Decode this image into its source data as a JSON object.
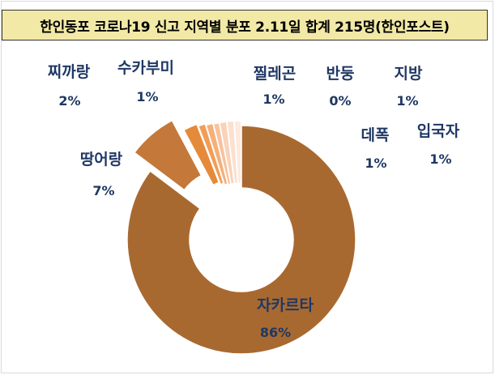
{
  "chart_data": {
    "type": "pie",
    "title": "한인동포 코로나19 신고 지역별 분포 2.11일 합계 215명(한인포스트)",
    "slices": [
      {
        "label": "자카르타",
        "value": 86,
        "value_label": "86%",
        "color": "#a86930",
        "exploded": false
      },
      {
        "label": "땅어랑",
        "value": 7,
        "value_label": "7%",
        "color": "#c4783a",
        "exploded": true
      },
      {
        "label": "찌까랑",
        "value": 2,
        "value_label": "2%",
        "color": "#e58a3a",
        "exploded": true
      },
      {
        "label": "수카부미",
        "value": 1,
        "value_label": "1%",
        "color": "#f29d55",
        "exploded": true
      },
      {
        "label": "찔레곤",
        "value": 1,
        "value_label": "1%",
        "color": "#f5b07a",
        "exploded": true
      },
      {
        "label": "반둥",
        "value": 0,
        "value_label": "0%",
        "color": "#f7c29d",
        "exploded": true
      },
      {
        "label": "지방",
        "value": 1,
        "value_label": "1%",
        "color": "#f9d2b8",
        "exploded": true
      },
      {
        "label": "데폭",
        "value": 1,
        "value_label": "1%",
        "color": "#fbe0d0",
        "exploded": true
      },
      {
        "label": "입국자",
        "value": 1,
        "value_label": "1%",
        "color": "#fde9de",
        "exploded": true
      }
    ]
  }
}
